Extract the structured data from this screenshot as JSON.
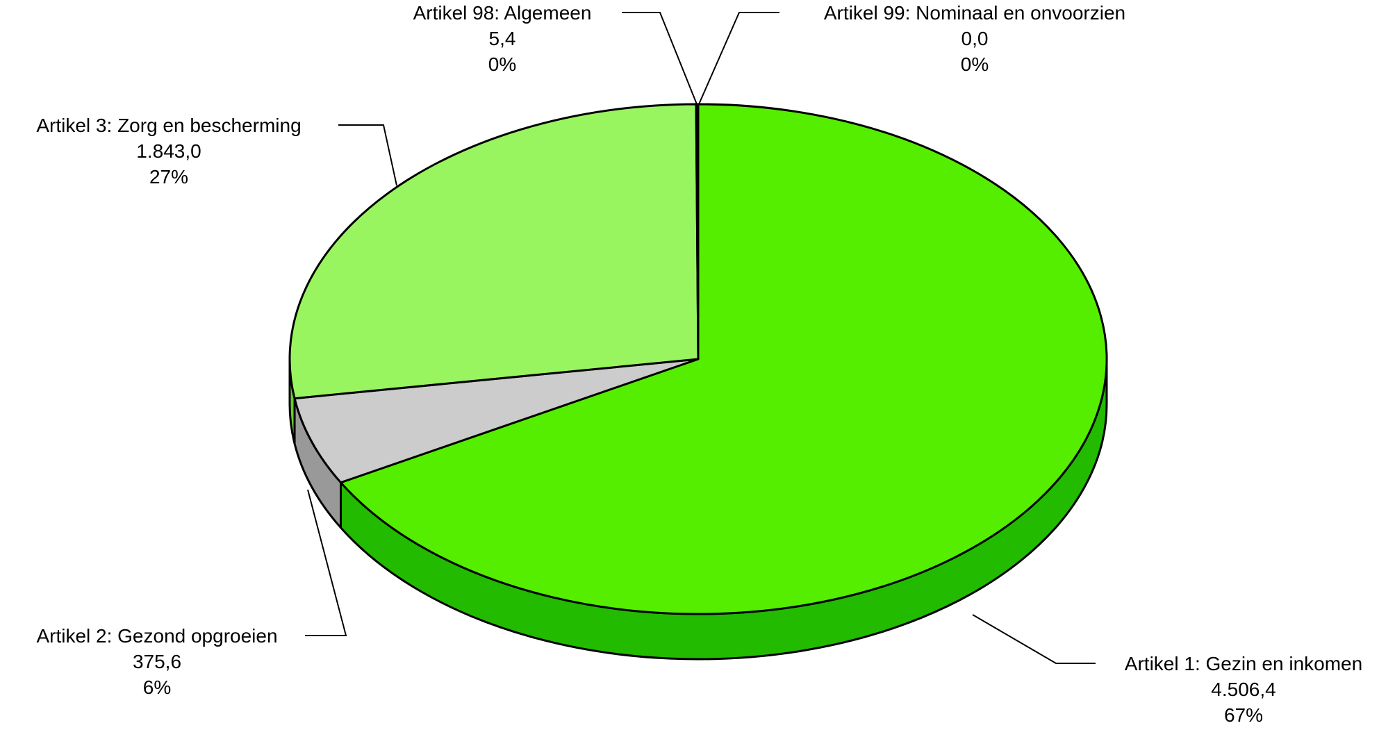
{
  "chart_data": {
    "type": "pie",
    "three_d": true,
    "legend": "none",
    "slices": [
      {
        "label": "Artikel 1: Gezin en inkomen",
        "value_text": "4.506,4",
        "value": 4506.4,
        "percent_text": "67%",
        "color": "#55ee00",
        "side_color": "#22bb00"
      },
      {
        "label": "Artikel 2: Gezond opgroeien",
        "value_text": "375,6",
        "value": 375.6,
        "percent_text": "6%",
        "color": "#cccccc",
        "side_color": "#999999"
      },
      {
        "label": "Artikel 3: Zorg en bescherming",
        "value_text": "1.843,0",
        "value": 1843.0,
        "percent_text": "27%",
        "color": "#99f55f",
        "side_color": "#66cc33"
      },
      {
        "label": "Artikel 98: Algemeen",
        "value_text": "5,4",
        "value": 5.4,
        "percent_text": "0%",
        "color": "#66cc33",
        "side_color": "#339900"
      },
      {
        "label": "Artikel 99: Nominaal en onvoorzien",
        "value_text": "0,0",
        "value": 0.0,
        "percent_text": "0%",
        "color": "#339900",
        "side_color": "#226600"
      }
    ]
  }
}
